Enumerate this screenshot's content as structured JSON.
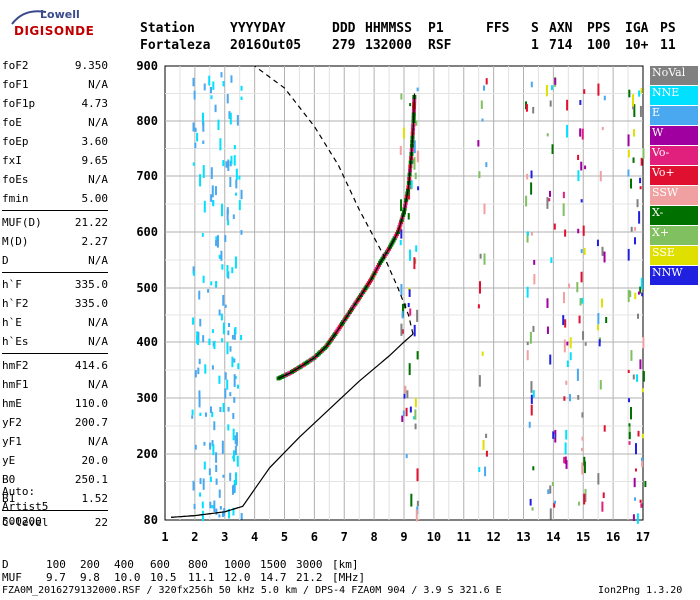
{
  "logo": {
    "line1": "Lowell",
    "line2": "DIGISONDE"
  },
  "header": {
    "labels": [
      "Station",
      "YYYY",
      "DAY",
      "DDD",
      "HHMMSS",
      "P1",
      "FFS",
      "S",
      "AXN",
      "PPS",
      "IGA",
      "PS"
    ],
    "values": [
      "Fortaleza",
      "2016",
      "Out05",
      "279",
      "132000",
      "RSF",
      "",
      "1",
      "714",
      "100",
      "10+",
      "11"
    ]
  },
  "params": {
    "group1": [
      {
        "name": "foF2",
        "value": "9.350"
      },
      {
        "name": "foF1",
        "value": "N/A"
      },
      {
        "name": "foF1p",
        "value": "4.73"
      },
      {
        "name": "foE",
        "value": "N/A"
      },
      {
        "name": "foEp",
        "value": "3.60"
      },
      {
        "name": "fxI",
        "value": "9.65"
      },
      {
        "name": "foEs",
        "value": "N/A"
      },
      {
        "name": "fmin",
        "value": "5.00"
      }
    ],
    "group2": [
      {
        "name": "MUF(D)",
        "value": "21.22"
      },
      {
        "name": "M(D)",
        "value": "2.27"
      },
      {
        "name": "D",
        "value": "N/A"
      }
    ],
    "group3": [
      {
        "name": "h`F",
        "value": "335.0"
      },
      {
        "name": "h`F2",
        "value": "335.0"
      },
      {
        "name": "h`E",
        "value": "N/A"
      },
      {
        "name": "h`Es",
        "value": "N/A"
      }
    ],
    "group4": [
      {
        "name": "hmF2",
        "value": "414.6"
      },
      {
        "name": "hmF1",
        "value": "N/A"
      },
      {
        "name": "hmE",
        "value": "110.0"
      },
      {
        "name": "yF2",
        "value": "200.7"
      },
      {
        "name": "yF1",
        "value": "N/A"
      },
      {
        "name": "yE",
        "value": "20.0"
      },
      {
        "name": "B0",
        "value": "250.1"
      },
      {
        "name": "B1",
        "value": "1.52"
      }
    ],
    "group5": [
      {
        "name": "C-level",
        "value": "22"
      }
    ]
  },
  "auto": {
    "line1": "Auto:",
    "line2": "Artist5",
    "line3": "500200"
  },
  "legend": [
    {
      "label": "NoVal",
      "color": "#808080"
    },
    {
      "label": "NNE",
      "color": "#00e0ff"
    },
    {
      "label": "E",
      "color": "#4aa8f0"
    },
    {
      "label": "W",
      "color": "#a000a0"
    },
    {
      "label": "Vo-",
      "color": "#e0207c"
    },
    {
      "label": "Vo+",
      "color": "#e01030"
    },
    {
      "label": "SSW",
      "color": "#f0a0a0"
    },
    {
      "label": "X-",
      "color": "#007000"
    },
    {
      "label": "X+",
      "color": "#80c060"
    },
    {
      "label": "SSE",
      "color": "#e0e000"
    },
    {
      "label": "NNW",
      "color": "#2020e0"
    }
  ],
  "footer": {
    "d_label": "D",
    "d_values": [
      "100",
      "200",
      "400",
      "600",
      "800",
      "1000",
      "1500",
      "3000"
    ],
    "d_unit": "[km]",
    "muf_label": "MUF",
    "muf_values": [
      "9.7",
      "9.8",
      "10.0",
      "10.5",
      "11.1",
      "12.0",
      "14.7",
      "21.2"
    ],
    "muf_unit": "[MHz]",
    "info": "FZA0M_2016279132000.RSF / 320fx256h 50 kHz 5.0 km / DPS-4 FZA0M 904 / 3.9 S 321.6 E",
    "version": "Ion2Png 1.3.20"
  },
  "chart_data": {
    "type": "scatter",
    "xlim": [
      1,
      17
    ],
    "ylim": [
      80,
      900
    ],
    "xticks": [
      "1",
      "2",
      "3",
      "4",
      "5",
      "6",
      "7",
      "8",
      "9",
      "10",
      "11",
      "12",
      "13",
      "14",
      "15",
      "16",
      "17"
    ],
    "yticks": [
      "80",
      "200",
      "300",
      "400",
      "500",
      "600",
      "700",
      "800",
      "900"
    ],
    "grid": true,
    "trace": [
      {
        "x": 4.8,
        "y": 335
      },
      {
        "x": 5.2,
        "y": 345
      },
      {
        "x": 5.6,
        "y": 358
      },
      {
        "x": 6.0,
        "y": 372
      },
      {
        "x": 6.4,
        "y": 392
      },
      {
        "x": 6.7,
        "y": 415
      },
      {
        "x": 7.0,
        "y": 440
      },
      {
        "x": 7.3,
        "y": 465
      },
      {
        "x": 7.6,
        "y": 490
      },
      {
        "x": 7.9,
        "y": 515
      },
      {
        "x": 8.2,
        "y": 545
      },
      {
        "x": 8.5,
        "y": 570
      },
      {
        "x": 8.8,
        "y": 600
      },
      {
        "x": 9.0,
        "y": 635
      },
      {
        "x": 9.15,
        "y": 680
      },
      {
        "x": 9.25,
        "y": 740
      },
      {
        "x": 9.32,
        "y": 800
      },
      {
        "x": 9.35,
        "y": 850
      }
    ],
    "profile": [
      {
        "x": 1.2,
        "y": 85
      },
      {
        "x": 2.0,
        "y": 88
      },
      {
        "x": 3.0,
        "y": 95
      },
      {
        "x": 3.6,
        "y": 105
      },
      {
        "x": 4.5,
        "y": 175
      },
      {
        "x": 5.5,
        "y": 230
      },
      {
        "x": 6.5,
        "y": 280
      },
      {
        "x": 7.5,
        "y": 330
      },
      {
        "x": 8.5,
        "y": 375
      },
      {
        "x": 9.0,
        "y": 400
      },
      {
        "x": 9.3,
        "y": 414.6
      }
    ],
    "profile_dashed": [
      {
        "x": 9.3,
        "y": 414.6
      },
      {
        "x": 9.15,
        "y": 450
      },
      {
        "x": 8.8,
        "y": 500
      },
      {
        "x": 8.3,
        "y": 560
      },
      {
        "x": 7.5,
        "y": 640
      },
      {
        "x": 6.8,
        "y": 720
      },
      {
        "x": 6.0,
        "y": 790
      },
      {
        "x": 5.0,
        "y": 860
      },
      {
        "x": 4.0,
        "y": 900
      }
    ],
    "lower_dashed": [
      {
        "x": 1.2,
        "y": 85
      },
      {
        "x": 2.0,
        "y": 88
      },
      {
        "x": 3.0,
        "y": 95
      },
      {
        "x": 3.6,
        "y": 105
      }
    ]
  }
}
